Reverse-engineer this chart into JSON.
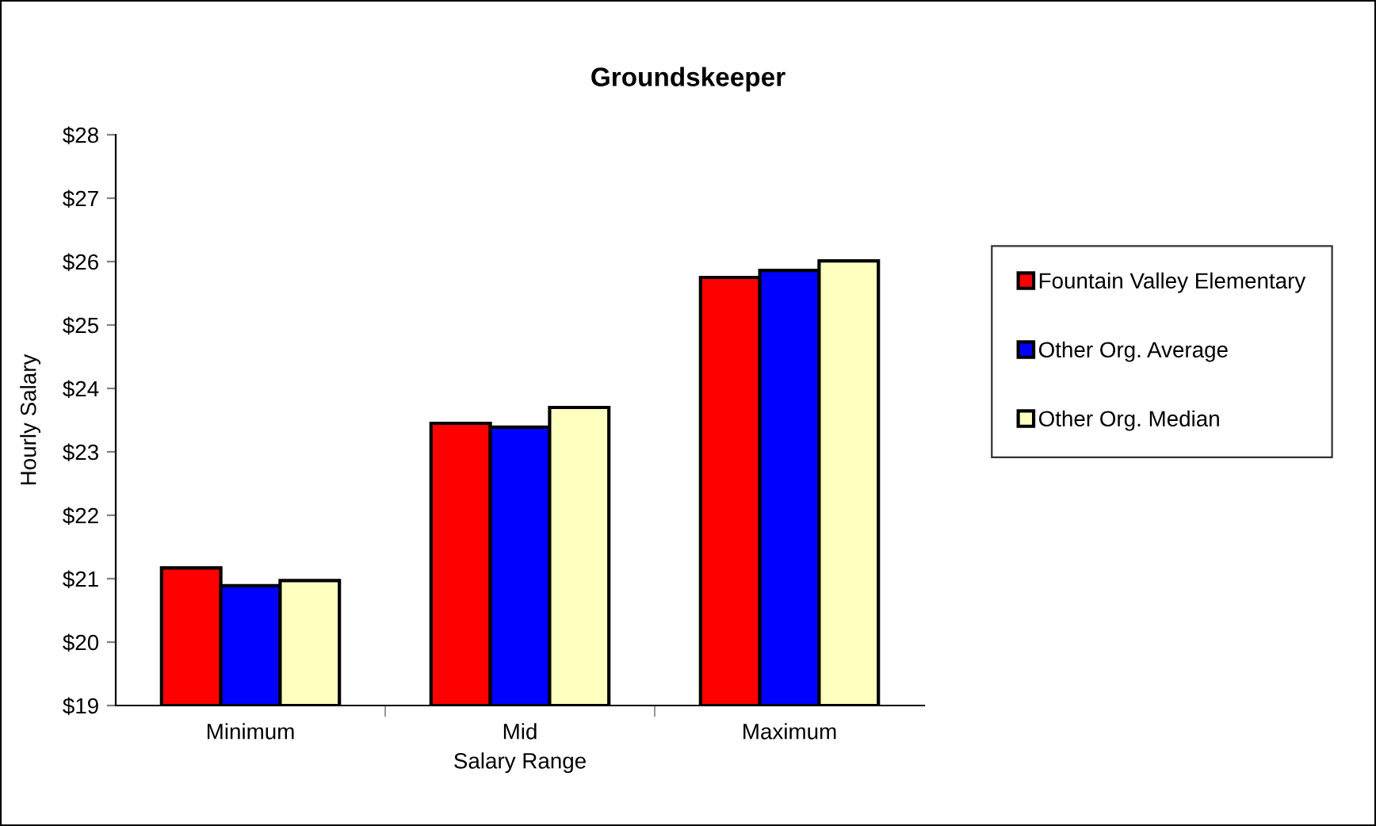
{
  "chart_data": {
    "type": "bar",
    "title": "Groundskeeper",
    "xlabel": "Salary Range",
    "ylabel": "Hourly Salary",
    "categories": [
      "Minimum",
      "Mid",
      "Maximum"
    ],
    "series": [
      {
        "name": "Fountain Valley Elementary",
        "color": "#ff0000",
        "values": [
          21.17,
          23.45,
          25.75
        ]
      },
      {
        "name": "Other Org. Average",
        "color": "#0000ff",
        "values": [
          20.89,
          23.39,
          25.86
        ]
      },
      {
        "name": "Other Org. Median",
        "color": "#ffffc0",
        "values": [
          20.97,
          23.7,
          26.01
        ]
      }
    ],
    "ylim": [
      19,
      28
    ],
    "yticks": [
      {
        "value": 19,
        "label": "$19"
      },
      {
        "value": 20,
        "label": "$20"
      },
      {
        "value": 21,
        "label": "$21"
      },
      {
        "value": 22,
        "label": "$22"
      },
      {
        "value": 23,
        "label": "$23"
      },
      {
        "value": 24,
        "label": "$24"
      },
      {
        "value": 25,
        "label": "$25"
      },
      {
        "value": 26,
        "label": "$26"
      },
      {
        "value": 27,
        "label": "$27"
      },
      {
        "value": 28,
        "label": "$28"
      }
    ],
    "grid": false,
    "legend": "right"
  }
}
